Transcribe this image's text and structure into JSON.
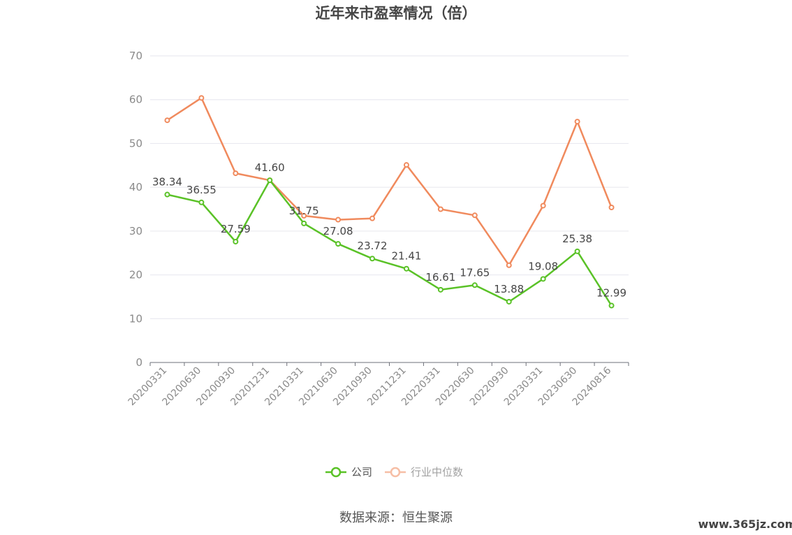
{
  "chart_data": {
    "type": "line",
    "title": "近年来市盈率情况（倍）",
    "categories": [
      "20200331",
      "20200630",
      "20200930",
      "20201231",
      "20210331",
      "20210630",
      "20210930",
      "20211231",
      "20220331",
      "20220630",
      "20220930",
      "20230331",
      "20230630",
      "20240816"
    ],
    "series": [
      {
        "name": "公司",
        "color": "#5ac227",
        "values": [
          38.34,
          36.55,
          27.59,
          41.6,
          31.75,
          27.08,
          23.72,
          21.41,
          16.61,
          17.65,
          13.88,
          19.08,
          25.38,
          12.99
        ],
        "labels": [
          "38.34",
          "36.55",
          "27.59",
          "41.60",
          "31.75",
          "27.08",
          "23.72",
          "21.41",
          "16.61",
          "17.65",
          "13.88",
          "19.08",
          "25.38",
          "12.99"
        ]
      },
      {
        "name": "行业中位数",
        "color": "#f08a5d",
        "values": [
          55.3,
          60.4,
          43.2,
          41.6,
          33.5,
          32.6,
          32.9,
          45.1,
          35.0,
          33.6,
          22.2,
          35.8,
          55.0,
          35.4
        ]
      }
    ],
    "ylim": [
      0,
      70
    ],
    "yticks": [
      0,
      10,
      20,
      30,
      40,
      50,
      60,
      70
    ],
    "grid": true,
    "legend": "bottom-center"
  },
  "source_text": "数据来源：恒生聚源",
  "watermark": "www.365jz.com"
}
